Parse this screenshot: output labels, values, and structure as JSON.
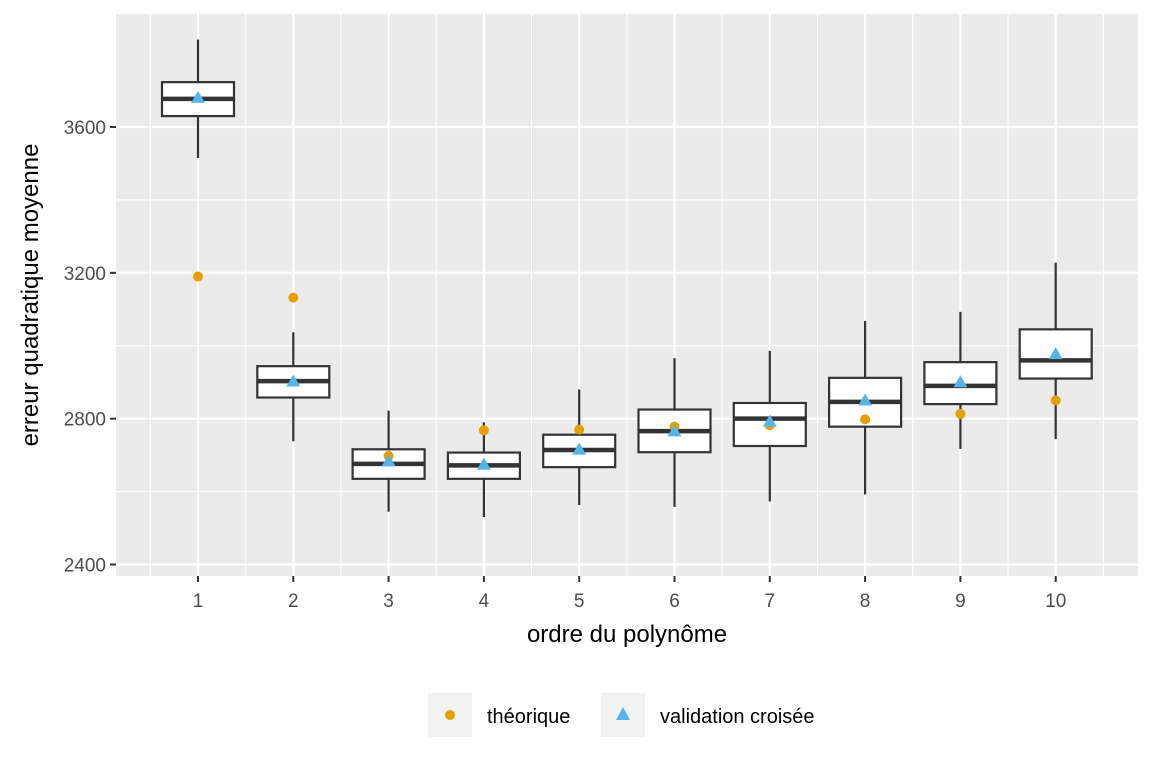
{
  "chart_data": {
    "type": "boxplot",
    "xlabel": "ordre du polynôme",
    "ylabel": "erreur quadratique moyenne",
    "categories": [
      "1",
      "2",
      "3",
      "4",
      "5",
      "6",
      "7",
      "8",
      "9",
      "10"
    ],
    "ylim": [
      2360,
      3850
    ],
    "yticks": [
      2400,
      2800,
      3200,
      3600
    ],
    "grid": true,
    "legend_position": "bottom",
    "boxes": [
      {
        "category": "1",
        "whisker_low": 3515,
        "q1": 3630,
        "median": 3677,
        "q3": 3723,
        "whisker_high": 3840
      },
      {
        "category": "2",
        "whisker_low": 2738,
        "q1": 2858,
        "median": 2903,
        "q3": 2944,
        "whisker_high": 3037
      },
      {
        "category": "3",
        "whisker_low": 2545,
        "q1": 2635,
        "median": 2676,
        "q3": 2716,
        "whisker_high": 2822
      },
      {
        "category": "4",
        "whisker_low": 2530,
        "q1": 2635,
        "median": 2672,
        "q3": 2707,
        "whisker_high": 2790
      },
      {
        "category": "5",
        "whisker_low": 2563,
        "q1": 2667,
        "median": 2714,
        "q3": 2756,
        "whisker_high": 2880
      },
      {
        "category": "6",
        "whisker_low": 2558,
        "q1": 2708,
        "median": 2766,
        "q3": 2825,
        "whisker_high": 2966
      },
      {
        "category": "7",
        "whisker_low": 2573,
        "q1": 2725,
        "median": 2800,
        "q3": 2843,
        "whisker_high": 2986
      },
      {
        "category": "8",
        "whisker_low": 2592,
        "q1": 2778,
        "median": 2846,
        "q3": 2912,
        "whisker_high": 3068
      },
      {
        "category": "9",
        "whisker_low": 2717,
        "q1": 2840,
        "median": 2890,
        "q3": 2955,
        "whisker_high": 3093
      },
      {
        "category": "10",
        "whisker_low": 2744,
        "q1": 2910,
        "median": 2960,
        "q3": 3045,
        "whisker_high": 3228
      }
    ],
    "series": [
      {
        "name": "théorique",
        "marker": "circle",
        "color": "#E69F00",
        "values": [
          3190,
          3132,
          2698,
          2768,
          2770,
          2778,
          2782,
          2798,
          2813,
          2850
        ]
      },
      {
        "name": "validation croisée",
        "marker": "triangle",
        "color": "#56B4E9",
        "values": [
          3680,
          2902,
          2683,
          2674,
          2715,
          2765,
          2792,
          2850,
          2900,
          2977
        ]
      }
    ]
  }
}
